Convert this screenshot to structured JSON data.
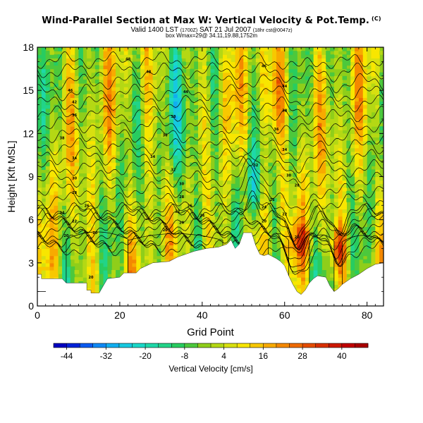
{
  "title_main": "Wind-Parallel Section at Max W: Vertical Velocity & Pot.Temp.",
  "title_tag": "(C)",
  "subtitle_1": "Valid 1400 LST",
  "subtitle_1_small_a": "(1700Z)",
  "subtitle_1_mid": "SAT 21 Jul 2007",
  "subtitle_1_small_b": "(18hr cst@0047z)",
  "subtitle_2": "box Wmax=29@ 34.11,19.88,1752m",
  "colorbar_label": "Vertical Velocity [cm/s]",
  "colors": {
    "plot_background": "#8fce1a",
    "terrain": "#ffffff",
    "contour": "#000000"
  },
  "chart_data": {
    "type": "heatmap",
    "title": "Wind-Parallel Section at Max W: Vertical Velocity & Pot.Temp.",
    "xlabel": "Grid Point",
    "ylabel": "Height [Kft MSL]",
    "xlim": [
      0,
      84
    ],
    "ylim": [
      0,
      18
    ],
    "x_ticks": [
      0,
      20,
      40,
      60,
      80
    ],
    "y_ticks": [
      0,
      3,
      6,
      9,
      12,
      15,
      18
    ],
    "x_tick_labels": [
      "0",
      "20",
      "40",
      "60",
      "80"
    ],
    "y_tick_labels": [
      "0",
      "3",
      "6",
      "9",
      "12",
      "15",
      "18"
    ],
    "colorbar": {
      "label": "Vertical Velocity [cm/s]",
      "min": -48,
      "max": 48,
      "step": 4,
      "tick_labels": [
        "-44",
        "-32",
        "-20",
        "-8",
        "4",
        "16",
        "28",
        "40"
      ],
      "colors": [
        "#0000c0",
        "#0022d8",
        "#0a5af0",
        "#0f89f5",
        "#11aef0",
        "#16c9e0",
        "#1ad8c8",
        "#1ed8a8",
        "#22d488",
        "#28cc60",
        "#4cc83c",
        "#8fce1a",
        "#b4d814",
        "#d8e010",
        "#f8e600",
        "#f8c800",
        "#f8aa00",
        "#f48800",
        "#ee6a00",
        "#e44c00",
        "#d83000",
        "#cc1800",
        "#c00000",
        "#a80000"
      ]
    },
    "terrain_profile": [
      [
        0,
        2.2
      ],
      [
        1,
        2.2
      ],
      [
        1,
        1.9
      ],
      [
        6,
        1.9
      ],
      [
        7,
        1.6
      ],
      [
        12,
        1.6
      ],
      [
        12,
        1.1
      ],
      [
        13,
        1.1
      ],
      [
        13,
        0.9
      ],
      [
        15,
        0.9
      ],
      [
        16,
        1.4
      ],
      [
        17,
        1.9
      ],
      [
        20,
        2.0
      ],
      [
        21,
        2.3
      ],
      [
        24,
        2.3
      ],
      [
        25,
        2.6
      ],
      [
        28,
        3.0
      ],
      [
        32,
        3.1
      ],
      [
        34,
        3.4
      ],
      [
        36,
        3.6
      ],
      [
        38,
        3.8
      ],
      [
        41,
        4.0
      ],
      [
        44,
        4.1
      ],
      [
        46,
        4.3
      ],
      [
        47,
        4.6
      ],
      [
        48,
        4.0
      ],
      [
        49,
        4.3
      ],
      [
        50,
        5.1
      ],
      [
        52,
        5.1
      ],
      [
        53,
        4.2
      ],
      [
        54,
        3.6
      ],
      [
        55,
        3.5
      ],
      [
        56,
        3.6
      ],
      [
        58,
        3.3
      ],
      [
        59,
        3.1
      ],
      [
        60,
        2.8
      ],
      [
        61,
        2.1
      ],
      [
        62,
        1.5
      ],
      [
        63,
        1.0
      ],
      [
        64,
        0.8
      ],
      [
        65,
        1.1
      ],
      [
        66,
        1.6
      ],
      [
        67,
        1.9
      ],
      [
        68,
        2.1
      ],
      [
        70,
        2.0
      ],
      [
        71,
        1.4
      ],
      [
        72,
        1.0
      ],
      [
        73,
        1.2
      ],
      [
        74,
        1.5
      ],
      [
        76,
        1.9
      ],
      [
        78,
        2.2
      ],
      [
        80,
        2.6
      ],
      [
        82,
        2.9
      ],
      [
        84,
        3.0
      ]
    ],
    "theta_labels": [
      {
        "x": 8,
        "y": 15.0,
        "text": "46"
      },
      {
        "x": 22,
        "y": 17.2,
        "text": "48"
      },
      {
        "x": 27,
        "y": 16.3,
        "text": "48"
      },
      {
        "x": 36,
        "y": 14.9,
        "text": "44"
      },
      {
        "x": 33,
        "y": 13.2,
        "text": "38"
      },
      {
        "x": 31,
        "y": 11.9,
        "text": "36"
      },
      {
        "x": 28,
        "y": 10.4,
        "text": "34"
      },
      {
        "x": 33,
        "y": 9.5,
        "text": "32"
      },
      {
        "x": 35,
        "y": 8.5,
        "text": "30"
      },
      {
        "x": 35,
        "y": 7.6,
        "text": "28"
      },
      {
        "x": 37,
        "y": 7.0,
        "text": "26"
      },
      {
        "x": 34,
        "y": 6.6,
        "text": "22"
      },
      {
        "x": 40,
        "y": 6.3,
        "text": "24"
      },
      {
        "x": 35,
        "y": 5.8,
        "text": "20"
      },
      {
        "x": 31,
        "y": 5.3,
        "text": "20"
      },
      {
        "x": 14,
        "y": 5.1,
        "text": "20"
      },
      {
        "x": 9,
        "y": 14.2,
        "text": "42"
      },
      {
        "x": 9,
        "y": 13.3,
        "text": "36"
      },
      {
        "x": 6,
        "y": 11.7,
        "text": "38"
      },
      {
        "x": 9,
        "y": 10.3,
        "text": "34"
      },
      {
        "x": 9,
        "y": 8.9,
        "text": "30"
      },
      {
        "x": 9,
        "y": 7.9,
        "text": "28"
      },
      {
        "x": 12,
        "y": 7.0,
        "text": "26"
      },
      {
        "x": 6,
        "y": 6.5,
        "text": "24"
      },
      {
        "x": 9,
        "y": 5.9,
        "text": "22"
      },
      {
        "x": 7,
        "y": 4.9,
        "text": "20"
      },
      {
        "x": 13,
        "y": 2.0,
        "text": "20"
      },
      {
        "x": 55,
        "y": 16.7,
        "text": "46"
      },
      {
        "x": 60,
        "y": 15.3,
        "text": "44"
      },
      {
        "x": 60,
        "y": 13.6,
        "text": "38"
      },
      {
        "x": 58,
        "y": 12.3,
        "text": "36"
      },
      {
        "x": 60,
        "y": 10.9,
        "text": "34"
      },
      {
        "x": 53,
        "y": 9.8,
        "text": "32"
      },
      {
        "x": 61,
        "y": 9.1,
        "text": "30"
      },
      {
        "x": 63,
        "y": 8.4,
        "text": "28"
      },
      {
        "x": 57,
        "y": 7.4,
        "text": "26"
      },
      {
        "x": 55,
        "y": 6.9,
        "text": "24"
      },
      {
        "x": 60,
        "y": 6.4,
        "text": "22"
      },
      {
        "x": 55,
        "y": 5.9,
        "text": "20"
      },
      {
        "x": 63,
        "y": 4.8,
        "text": "20"
      }
    ]
  }
}
